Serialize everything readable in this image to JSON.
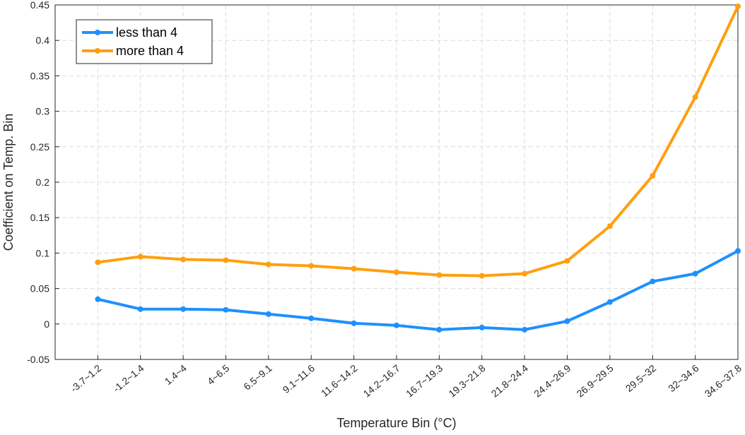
{
  "chart_data": {
    "type": "line",
    "x_label": "Temperature Bin (°C)",
    "y_label": "Coefficient on Temp. Bin",
    "categories": [
      "-3.7~1.2",
      "-1.2~1.4",
      "1.4~4",
      "4~6.5",
      "6.5~9.1",
      "9.1~11.6",
      "11.6~14.2",
      "14.2~16.7",
      "16.7~19.3",
      "19.3~21.8",
      "21.8~24.4",
      "24.4~26.9",
      "26.9~29.5",
      "29.5~32",
      "32~34.6",
      "34.6~37.8"
    ],
    "series": [
      {
        "name": "less than 4",
        "color": "#1e90ff",
        "values": [
          0.035,
          0.021,
          0.021,
          0.02,
          0.014,
          0.008,
          0.001,
          -0.002,
          -0.008,
          -0.005,
          -0.008,
          0.004,
          0.031,
          0.06,
          0.071,
          0.103
        ]
      },
      {
        "name": "more than 4",
        "color": "#ff9f0f",
        "values": [
          0.087,
          0.095,
          0.091,
          0.09,
          0.084,
          0.082,
          0.078,
          0.073,
          0.069,
          0.068,
          0.071,
          0.089,
          0.138,
          0.209,
          0.32,
          0.448
        ]
      }
    ],
    "ylim": [
      -0.05,
      0.45
    ],
    "yticks": [
      -0.05,
      0,
      0.05,
      0.1,
      0.15,
      0.2,
      0.25,
      0.3,
      0.35,
      0.4,
      0.45
    ],
    "grid": true,
    "legend": "upper-left"
  }
}
